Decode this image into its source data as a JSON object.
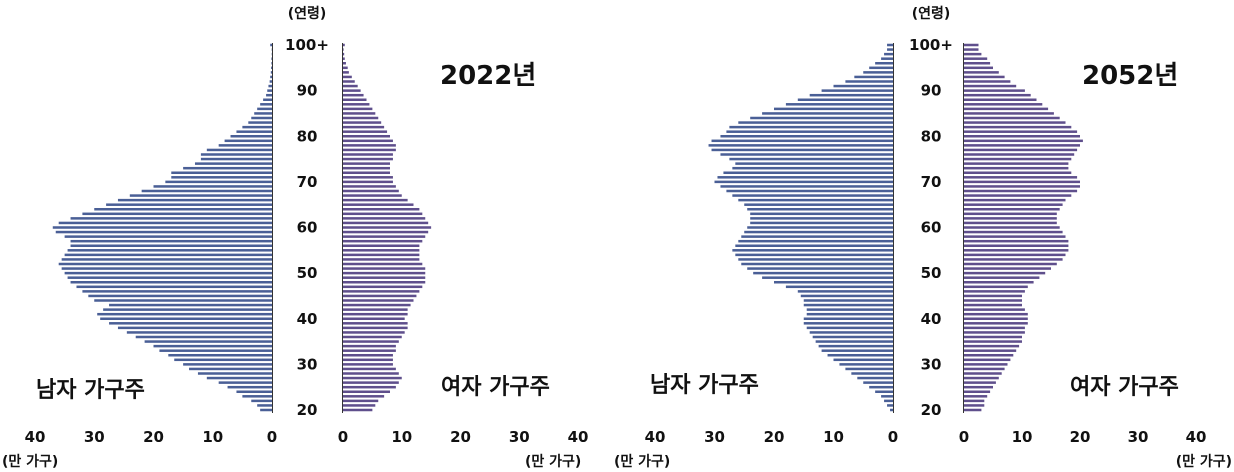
{
  "figure": {
    "x_unit": "(만 가구)",
    "y_unit": "(연령)",
    "age_ticks": [
      "20",
      "30",
      "40",
      "50",
      "60",
      "70",
      "80",
      "90",
      "100+"
    ],
    "value_ticks": [
      "0",
      "10",
      "20",
      "30",
      "40"
    ],
    "colors": {
      "male": "#4a5f96",
      "female": "#5f4f8c",
      "axis": "#333333"
    }
  },
  "chart_data": [
    {
      "type": "bar",
      "orientation": "horizontal-pyramid",
      "title": "2022년",
      "xlabel": "(만 가구)",
      "ylabel": "(연령)",
      "xlim": [
        0,
        40
      ],
      "male_label": "남자 가구주",
      "female_label": "여자 가구주",
      "ages": [
        20,
        21,
        22,
        23,
        24,
        25,
        26,
        27,
        28,
        29,
        30,
        31,
        32,
        33,
        34,
        35,
        36,
        37,
        38,
        39,
        40,
        41,
        42,
        43,
        44,
        45,
        46,
        47,
        48,
        49,
        50,
        51,
        52,
        53,
        54,
        55,
        56,
        57,
        58,
        59,
        60,
        61,
        62,
        63,
        64,
        65,
        66,
        67,
        68,
        69,
        70,
        71,
        72,
        73,
        74,
        75,
        76,
        77,
        78,
        79,
        80,
        81,
        82,
        83,
        84,
        85,
        86,
        87,
        88,
        89,
        90,
        91,
        92,
        93,
        94,
        95,
        96,
        97,
        98,
        99,
        100
      ],
      "series": [
        {
          "name": "남자 가구주",
          "values": [
            2,
            2.5,
            3.5,
            5,
            6,
            7.5,
            9,
            11,
            12.5,
            14,
            15,
            16.5,
            17.5,
            19,
            20,
            21.5,
            23,
            24.5,
            26,
            27.5,
            29,
            29.5,
            28.5,
            27.5,
            30,
            31,
            32,
            33,
            34,
            34.5,
            35,
            35.5,
            36,
            35.5,
            35,
            34.5,
            34,
            34,
            35,
            36.5,
            37,
            36,
            34,
            32,
            30,
            28,
            26,
            24,
            22,
            20,
            18,
            17,
            17,
            15,
            13,
            12,
            12,
            11,
            9,
            8,
            7,
            6,
            5,
            4,
            3.5,
            3,
            2.5,
            2,
            1.5,
            1,
            0.8,
            0.6,
            0.4,
            0.3,
            0.2,
            0.15,
            0.1,
            0.1,
            0.05,
            0.05,
            0.3
          ]
        },
        {
          "name": "여자 가구주",
          "values": [
            5,
            5.5,
            6,
            7,
            8,
            9,
            9.5,
            10,
            9.5,
            9,
            8.5,
            8.5,
            8.5,
            9,
            9,
            9.5,
            10,
            10.5,
            11,
            11,
            10.5,
            11,
            11,
            11.5,
            12,
            12.5,
            13,
            13.5,
            14,
            14,
            14,
            14,
            13.5,
            13,
            13,
            13,
            13,
            13.5,
            14,
            14.5,
            15,
            14.5,
            14,
            13.5,
            13,
            12,
            11,
            10,
            9.5,
            9,
            8.5,
            8.5,
            8,
            8,
            8,
            8.5,
            8.5,
            9,
            9,
            8.5,
            8,
            7.5,
            7,
            6.5,
            6,
            5.5,
            5,
            4.5,
            4,
            3.5,
            3,
            2.5,
            2,
            1.5,
            1,
            0.8,
            0.5,
            0.3,
            0.2,
            0.1,
            0.3
          ]
        }
      ]
    },
    {
      "type": "bar",
      "orientation": "horizontal-pyramid",
      "title": "2052년",
      "xlabel": "(만 가구)",
      "ylabel": "(연령)",
      "xlim": [
        0,
        40
      ],
      "male_label": "남자 가구주",
      "female_label": "여자 가구주",
      "ages": [
        20,
        21,
        22,
        23,
        24,
        25,
        26,
        27,
        28,
        29,
        30,
        31,
        32,
        33,
        34,
        35,
        36,
        37,
        38,
        39,
        40,
        41,
        42,
        43,
        44,
        45,
        46,
        47,
        48,
        49,
        50,
        51,
        52,
        53,
        54,
        55,
        56,
        57,
        58,
        59,
        60,
        61,
        62,
        63,
        64,
        65,
        66,
        67,
        68,
        69,
        70,
        71,
        72,
        73,
        74,
        75,
        76,
        77,
        78,
        79,
        80,
        81,
        82,
        83,
        84,
        85,
        86,
        87,
        88,
        89,
        90,
        91,
        92,
        93,
        94,
        95,
        96,
        97,
        98,
        99,
        100
      ],
      "series": [
        {
          "name": "남자 가구주",
          "values": [
            0.5,
            1,
            1.5,
            2,
            3,
            4,
            5,
            6,
            7,
            8,
            9,
            10,
            11,
            12,
            12.5,
            13,
            13.5,
            14,
            14.5,
            15,
            15,
            14.5,
            14.5,
            15,
            15,
            15.5,
            16,
            18,
            20,
            22,
            23.5,
            24.5,
            25.5,
            26,
            26.5,
            27,
            26.5,
            26,
            25.5,
            25,
            24.5,
            24,
            24,
            24,
            24.5,
            25,
            26,
            27,
            28,
            29,
            30,
            29.5,
            28.5,
            27,
            26.5,
            27.5,
            29,
            30.5,
            31,
            30.5,
            29,
            28,
            27.5,
            26,
            24,
            22,
            20,
            18,
            16,
            14,
            12,
            10,
            8,
            6.5,
            5,
            4,
            3,
            2,
            1.5,
            1,
            1
          ]
        },
        {
          "name": "여자 가구주",
          "values": [
            3,
            3.5,
            3.5,
            4,
            4.5,
            5,
            5.5,
            6,
            6.5,
            7,
            7.5,
            8,
            8.5,
            9,
            9.5,
            10,
            10,
            10.5,
            10.5,
            11,
            11,
            11,
            10.5,
            10,
            10,
            10,
            10.5,
            11,
            12,
            13,
            14,
            15,
            16,
            17,
            17.5,
            18,
            18,
            18,
            17.5,
            17,
            16.5,
            16,
            16,
            16,
            16.5,
            17,
            17.5,
            18.5,
            19.5,
            20,
            20,
            19.5,
            18.5,
            18,
            18,
            18.5,
            19,
            19.5,
            20,
            20.5,
            20,
            19.5,
            18.5,
            17.5,
            16.5,
            15.5,
            14.5,
            13.5,
            12.5,
            11.5,
            10.5,
            9,
            8,
            7,
            6,
            5,
            4.5,
            4,
            3,
            2.5,
            2.5
          ]
        }
      ]
    }
  ]
}
